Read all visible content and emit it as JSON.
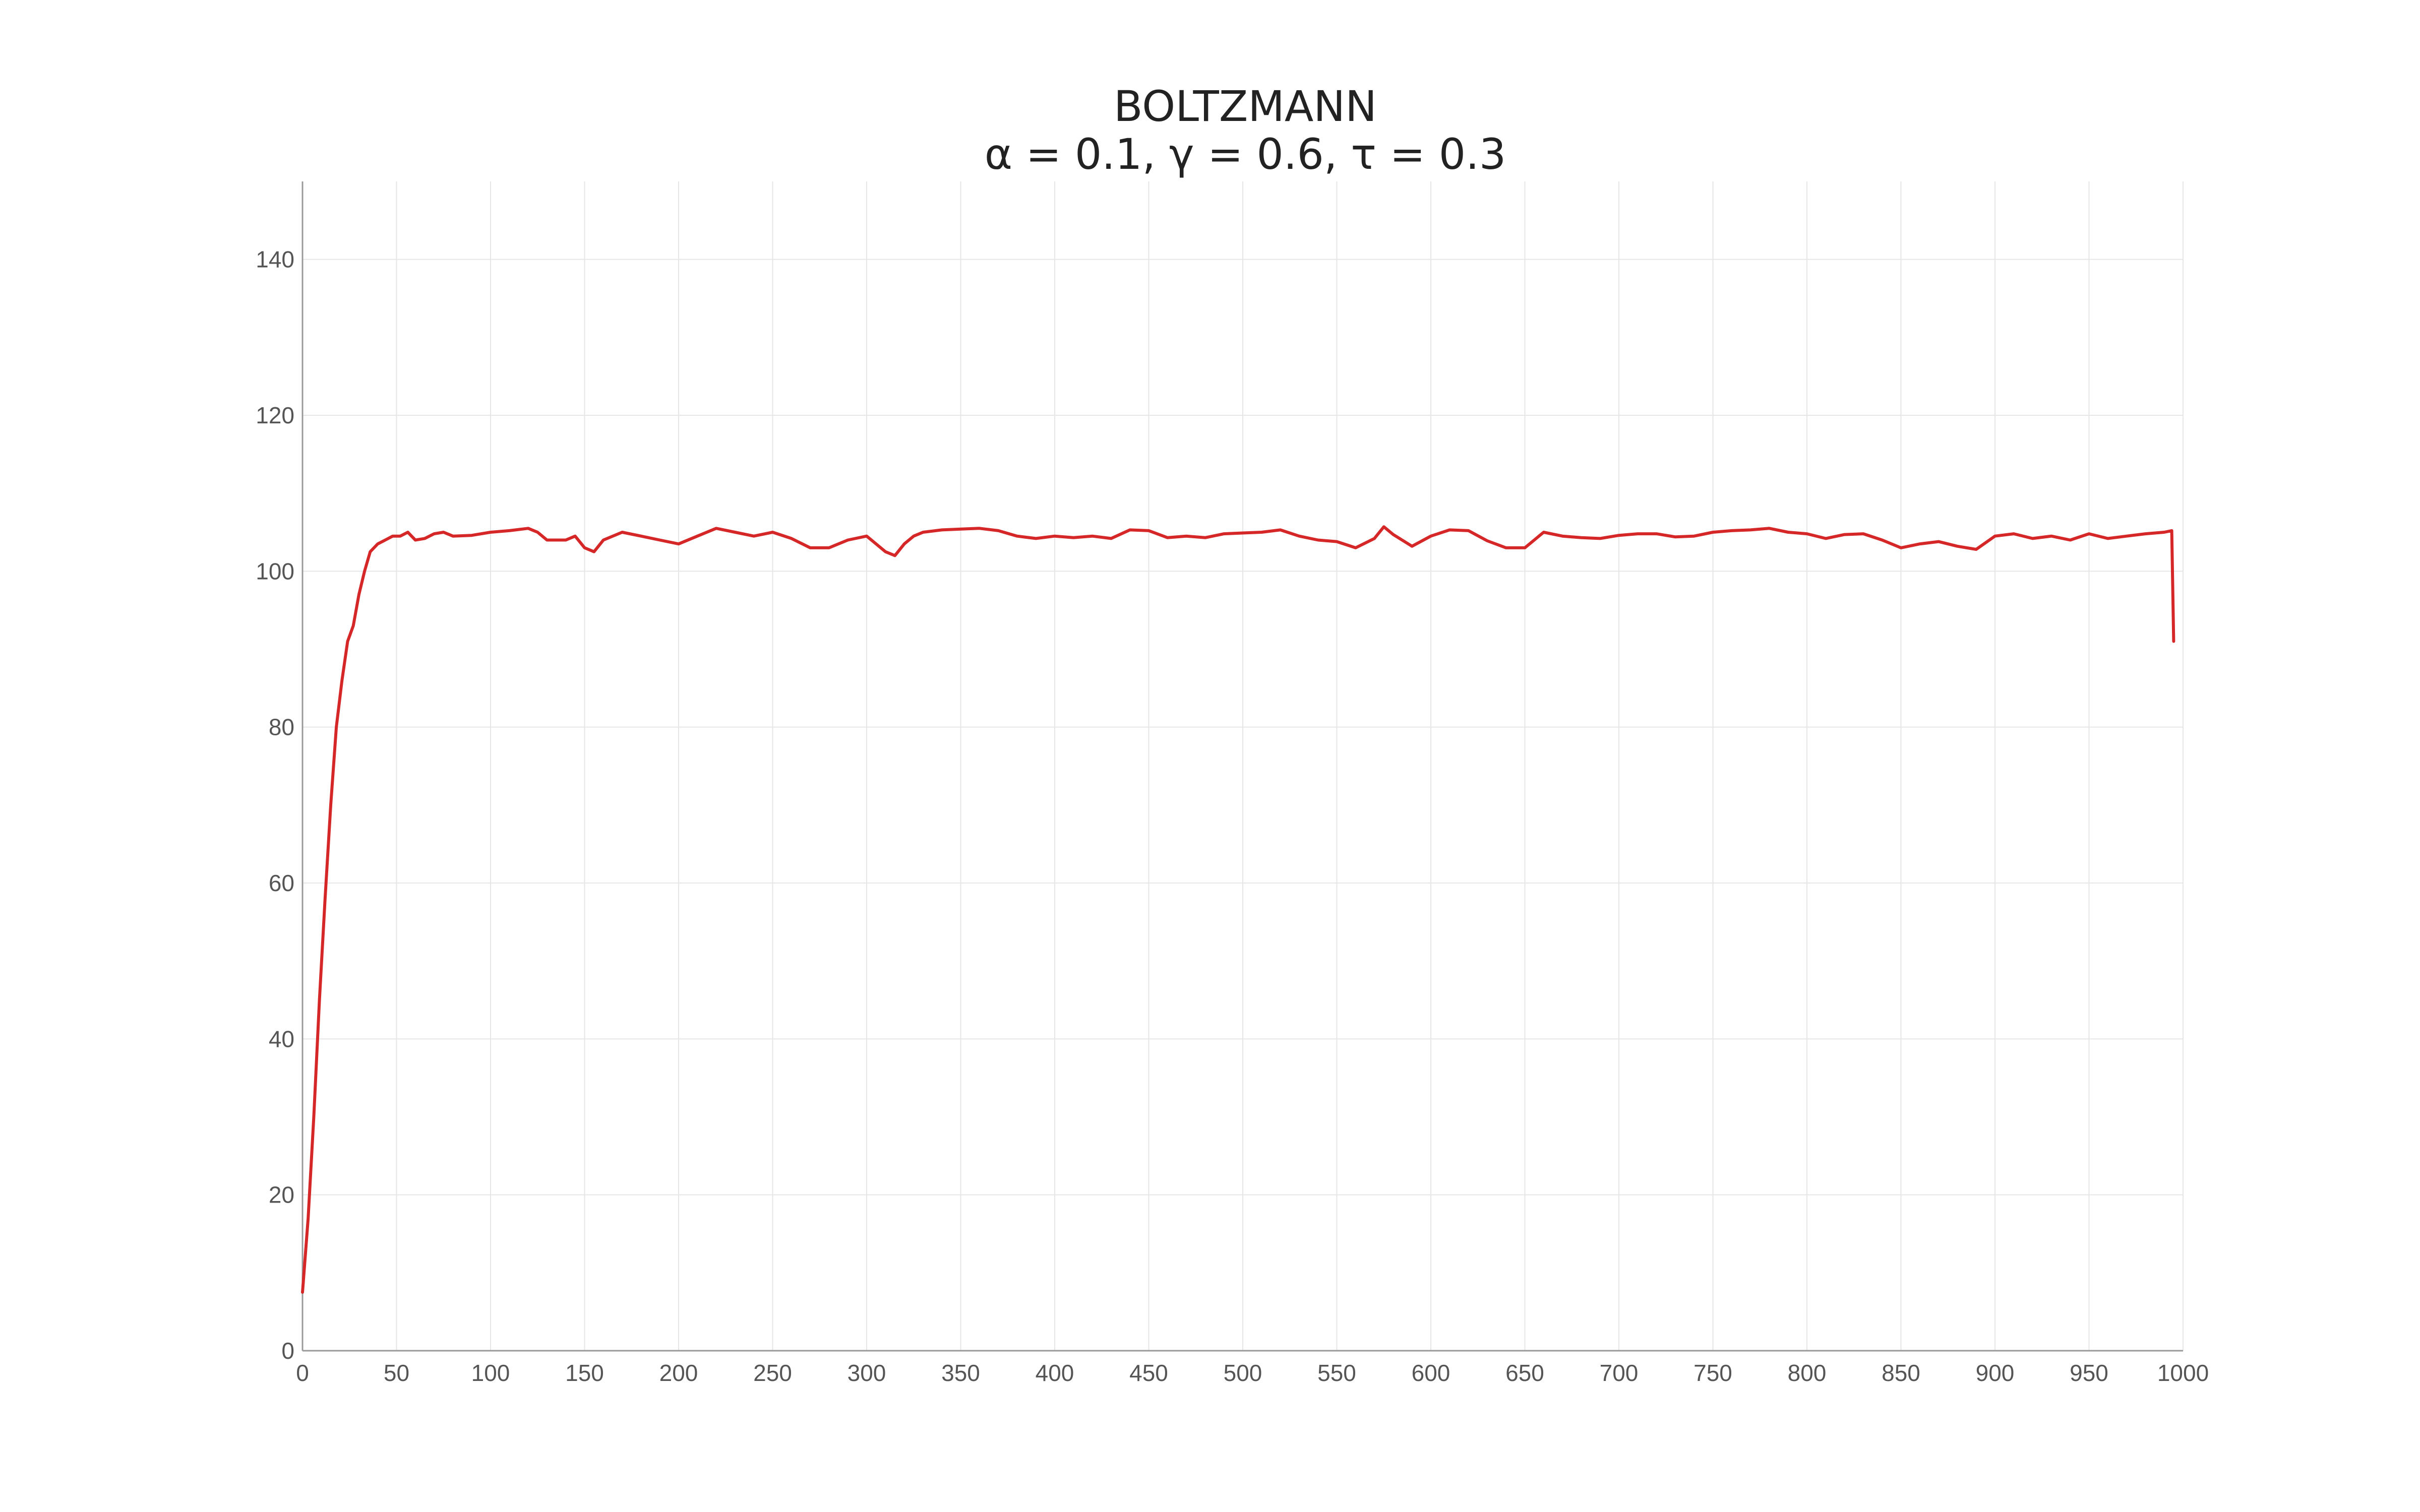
{
  "chart_data": {
    "type": "line",
    "title": "BOLTZMANN",
    "subtitle": "α = 0.1, γ = 0.6, τ = 0.3",
    "xlabel": "",
    "ylabel": "",
    "xlim": [
      0,
      1000
    ],
    "ylim": [
      0,
      150
    ],
    "x_ticks": [
      0,
      50,
      100,
      150,
      200,
      250,
      300,
      350,
      400,
      450,
      500,
      550,
      600,
      650,
      700,
      750,
      800,
      850,
      900,
      950,
      1000
    ],
    "y_ticks": [
      0,
      20,
      40,
      60,
      80,
      100,
      120,
      140
    ],
    "grid": true,
    "legend": "none",
    "colors": {
      "series": "#d62728",
      "grid": "#e6e6e6",
      "axis": "#999999",
      "tick_text": "#555555"
    },
    "series": [
      {
        "x": [
          0,
          3,
          6,
          9,
          12,
          15,
          18,
          21,
          24,
          27,
          30,
          33,
          36,
          40,
          44,
          48,
          52,
          56,
          60,
          65,
          70,
          75,
          80,
          90,
          100,
          110,
          120,
          125,
          130,
          140,
          145,
          150,
          155,
          160,
          170,
          180,
          190,
          200,
          210,
          220,
          230,
          240,
          250,
          260,
          270,
          280,
          290,
          300,
          310,
          315,
          320,
          325,
          330,
          340,
          350,
          360,
          370,
          380,
          390,
          400,
          410,
          420,
          430,
          440,
          450,
          460,
          470,
          480,
          490,
          500,
          510,
          520,
          530,
          540,
          550,
          560,
          570,
          575,
          580,
          590,
          600,
          610,
          620,
          630,
          640,
          650,
          660,
          670,
          680,
          690,
          700,
          710,
          720,
          730,
          740,
          750,
          760,
          770,
          780,
          790,
          800,
          810,
          820,
          830,
          840,
          850,
          860,
          870,
          880,
          890,
          900,
          910,
          920,
          930,
          940,
          950,
          960,
          970,
          980,
          990,
          994,
          995
        ],
        "y": [
          7.5,
          17,
          30,
          45,
          58,
          70,
          80,
          86,
          91,
          93,
          97,
          100,
          102.5,
          103.5,
          104,
          104.5,
          104.5,
          105,
          104,
          104.2,
          104.8,
          105,
          104.5,
          104.6,
          105,
          105.2,
          105.5,
          105,
          104,
          104,
          104.5,
          103,
          102.5,
          104,
          105,
          104.5,
          104,
          103.5,
          104.5,
          105.5,
          105,
          104.5,
          105,
          104.2,
          103,
          103,
          104,
          104.5,
          102.5,
          102,
          103.5,
          104.5,
          105,
          105.3,
          105.4,
          105.5,
          105.2,
          104.5,
          104.2,
          104.5,
          104.3,
          104.5,
          104.2,
          105.3,
          105.2,
          104.3,
          104.5,
          104.3,
          104.8,
          104.9,
          105,
          105.3,
          104.5,
          104,
          103.8,
          103,
          104.2,
          105.7,
          104.7,
          103.2,
          104.5,
          105.3,
          105.2,
          103.9,
          103,
          103,
          105,
          104.5,
          104.3,
          104.2,
          104.6,
          104.8,
          104.8,
          104.4,
          104.5,
          105,
          105.2,
          105.3,
          105.5,
          105,
          104.8,
          104.2,
          104.7,
          104.8,
          104,
          103,
          103.5,
          103.8,
          103.2,
          102.8,
          104.5,
          104.8,
          104.2,
          104.5,
          104,
          104.8,
          104.2,
          104.5,
          104.8,
          105,
          105.2,
          91
        ]
      }
    ]
  }
}
